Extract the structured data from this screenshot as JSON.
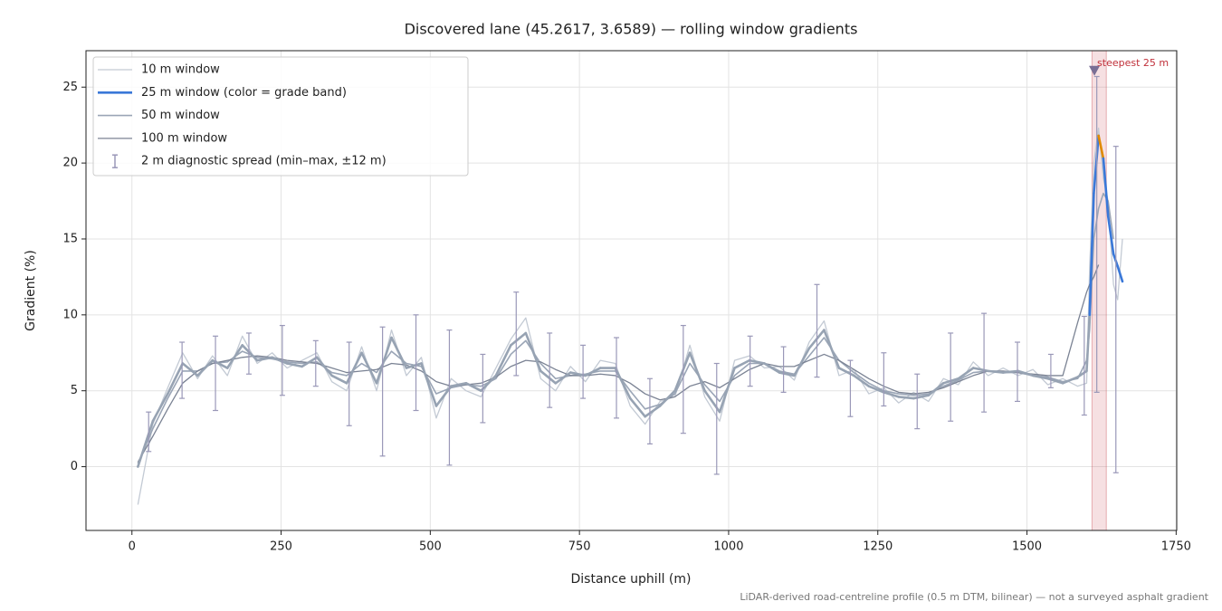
{
  "chart_data": {
    "type": "line",
    "title": "Discovered lane (45.2617, 3.6589) — rolling window gradients",
    "x_label": "Distance uphill (m)",
    "y_label": "Gradient (%)",
    "footnote": "LiDAR-derived road-centreline profile (0.5 m DTM, bilinear) — not a surveyed asphalt gradient",
    "xlim": [
      -77,
      1751
    ],
    "ylim": [
      -4.2,
      27.4
    ],
    "xticks": [
      0,
      250,
      500,
      750,
      1000,
      1250,
      1500,
      1750
    ],
    "yticks": [
      0,
      5,
      10,
      15,
      20,
      25
    ],
    "grid": true,
    "legend": "upper left",
    "x": [
      10,
      35,
      60,
      85,
      110,
      135,
      160,
      185,
      210,
      235,
      260,
      285,
      310,
      335,
      360,
      385,
      410,
      435,
      460,
      485,
      510,
      535,
      560,
      585,
      610,
      635,
      660,
      685,
      710,
      735,
      760,
      785,
      810,
      835,
      860,
      885,
      910,
      935,
      960,
      985,
      1010,
      1035,
      1060,
      1085,
      1110,
      1135,
      1160,
      1185,
      1210,
      1235,
      1260,
      1285,
      1310,
      1335,
      1360,
      1385,
      1410,
      1435,
      1460,
      1485,
      1510,
      1535,
      1560,
      1585,
      1600,
      1605,
      1612,
      1620,
      1628,
      1636,
      1645,
      1652,
      1660
    ],
    "series": [
      {
        "name": "10 m window",
        "color": "#c3cad4",
        "width": 1.3,
        "values": [
          -2.5,
          2.8,
          5.2,
          7.5,
          5.8,
          7.3,
          6.0,
          8.6,
          6.8,
          7.5,
          6.5,
          7.0,
          7.5,
          5.6,
          5.0,
          7.9,
          5.0,
          9.0,
          6.0,
          7.2,
          3.2,
          5.8,
          5.0,
          4.6,
          6.5,
          8.4,
          9.8,
          5.8,
          5.0,
          6.6,
          5.6,
          7.0,
          6.8,
          4.0,
          2.8,
          4.3,
          4.6,
          8.0,
          4.6,
          3.0,
          7.0,
          7.3,
          6.5,
          6.6,
          5.7,
          8.2,
          9.6,
          6.0,
          6.4,
          4.8,
          5.2,
          4.2,
          4.9,
          4.3,
          5.8,
          5.4,
          6.9,
          6.0,
          6.5,
          6.0,
          6.4,
          5.4,
          5.8,
          5.3,
          5.5,
          13.0,
          20.0,
          22.3,
          19.0,
          17.5,
          12.0,
          11.0,
          15.0
        ]
      },
      {
        "name": "25 m window (color = grade band)",
        "color": "#3a78d8",
        "width": 2.6,
        "values": [
          0,
          3.0,
          4.8,
          6.8,
          6.0,
          7.0,
          6.5,
          8.0,
          7.0,
          7.2,
          6.8,
          6.6,
          7.2,
          6.0,
          5.5,
          7.5,
          5.5,
          8.5,
          6.5,
          6.8,
          4.0,
          5.3,
          5.5,
          5.0,
          6.0,
          8.0,
          8.8,
          6.3,
          5.5,
          6.2,
          6.0,
          6.5,
          6.5,
          4.5,
          3.3,
          4.0,
          5.0,
          7.5,
          5.0,
          3.6,
          6.5,
          7.0,
          6.8,
          6.2,
          6.0,
          7.8,
          9.0,
          6.5,
          6.0,
          5.3,
          4.9,
          4.6,
          4.5,
          4.7,
          5.5,
          5.8,
          6.5,
          6.3,
          6.2,
          6.3,
          6.0,
          5.8,
          5.5,
          5.9,
          6.3,
          10.0,
          18.0,
          21.8,
          20.3,
          16.5,
          14.0,
          13.2,
          12.2
        ]
      },
      {
        "name": "50 m window",
        "color": "#9aa5b6",
        "width": 1.6,
        "values": [
          0.2,
          2.5,
          4.5,
          6.3,
          6.3,
          6.8,
          6.9,
          7.6,
          7.2,
          7.1,
          6.9,
          6.8,
          6.9,
          6.2,
          6.0,
          6.8,
          6.2,
          7.6,
          6.8,
          6.6,
          4.8,
          5.2,
          5.4,
          5.3,
          5.8,
          7.4,
          8.3,
          6.8,
          5.8,
          6.0,
          6.1,
          6.3,
          6.3,
          5.0,
          3.8,
          4.1,
          4.8,
          6.8,
          5.4,
          4.3,
          6.0,
          6.8,
          6.8,
          6.3,
          6.1,
          7.3,
          8.5,
          7.0,
          6.2,
          5.5,
          5.0,
          4.8,
          4.7,
          4.8,
          5.3,
          5.7,
          6.2,
          6.3,
          6.2,
          6.2,
          6.0,
          5.9,
          5.6,
          5.8,
          7.0,
          9.0,
          15.0,
          17.0,
          18.0,
          17.5,
          15.0,
          null,
          null
        ]
      },
      {
        "name": "100 m window",
        "color": "#7b8394",
        "width": 1.3,
        "values": [
          0.3,
          2.0,
          3.8,
          5.5,
          6.3,
          6.8,
          7.0,
          7.2,
          7.3,
          7.2,
          7.0,
          6.9,
          6.8,
          6.5,
          6.2,
          6.3,
          6.4,
          6.8,
          6.7,
          6.3,
          5.6,
          5.3,
          5.4,
          5.5,
          5.9,
          6.6,
          7.0,
          6.9,
          6.4,
          6.0,
          6.0,
          6.1,
          6.0,
          5.5,
          4.8,
          4.4,
          4.6,
          5.3,
          5.6,
          5.2,
          5.8,
          6.4,
          6.8,
          6.6,
          6.6,
          7.0,
          7.4,
          7.0,
          6.4,
          5.8,
          5.3,
          4.9,
          4.8,
          4.9,
          5.2,
          5.6,
          6.0,
          6.3,
          6.3,
          6.2,
          6.1,
          6.0,
          6.0,
          9.5,
          11.5,
          12.0,
          12.5,
          13.3,
          null,
          null,
          null,
          null,
          null
        ]
      }
    ],
    "base_color": "#97a3b3",
    "grade_bands": [
      {
        "from": 10,
        "color": "#3a78d8"
      },
      {
        "from": 20,
        "color": "#e08a00"
      }
    ],
    "errorbars": {
      "name": "2 m diagnostic spread (min–max, ±12 m)",
      "color": "#9a98b8",
      "x": [
        28,
        84,
        140,
        196,
        252,
        308,
        364,
        420,
        476,
        532,
        588,
        644,
        700,
        756,
        812,
        868,
        924,
        980,
        1036,
        1092,
        1148,
        1204,
        1260,
        1316,
        1372,
        1428,
        1484,
        1540,
        1596,
        1617,
        1649
      ],
      "low": [
        1.0,
        4.5,
        3.7,
        6.1,
        4.7,
        5.3,
        2.7,
        0.7,
        3.7,
        0.1,
        2.9,
        6.0,
        3.9,
        4.5,
        3.2,
        1.5,
        2.2,
        -0.5,
        5.3,
        4.9,
        5.9,
        3.3,
        4.0,
        2.5,
        3.0,
        3.6,
        4.3,
        5.2,
        3.4,
        4.9,
        -0.4
      ],
      "high": [
        3.6,
        8.2,
        8.6,
        8.8,
        9.3,
        8.3,
        8.2,
        9.2,
        10.0,
        9.0,
        7.4,
        11.5,
        8.8,
        8.0,
        8.5,
        5.8,
        9.3,
        6.8,
        8.6,
        7.9,
        12.0,
        7.0,
        7.5,
        6.1,
        8.8,
        10.1,
        8.2,
        7.4,
        9.9,
        25.7,
        21.1
      ]
    },
    "steepest": {
      "label": "steepest 25 m",
      "span": [
        1609,
        1633
      ],
      "marker_x": 1613,
      "marker_y": 26.1,
      "color": "#c0303a"
    }
  }
}
